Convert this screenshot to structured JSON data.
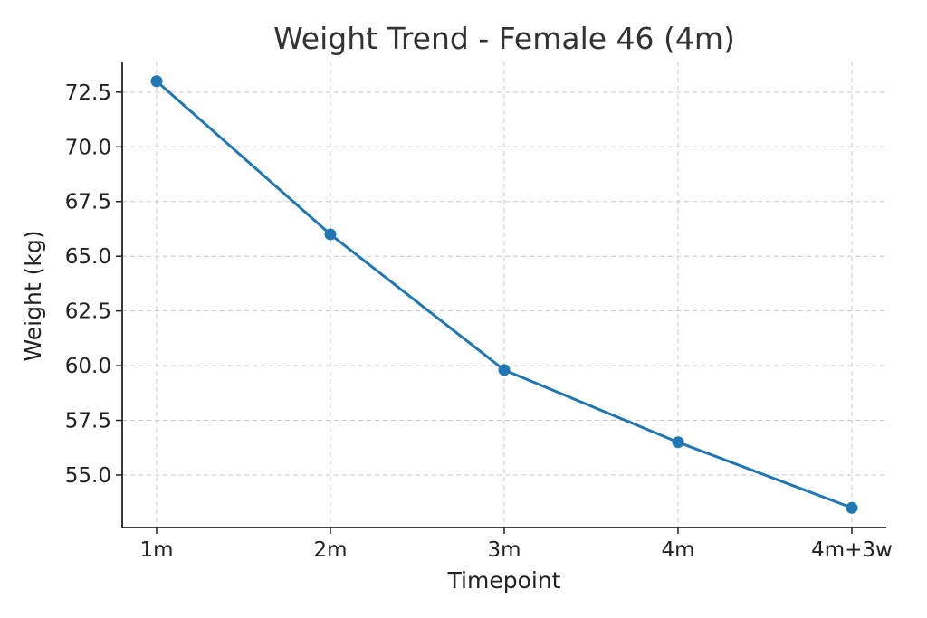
{
  "chart_data": {
    "type": "line",
    "title": "Weight Trend - Female 46 (4m)",
    "xlabel": "Timepoint",
    "ylabel": "Weight (kg)",
    "categories": [
      "1m",
      "2m",
      "3m",
      "4m",
      "4m+3w"
    ],
    "series": [
      {
        "values": [
          73.0,
          66.0,
          59.8,
          56.5,
          53.5
        ],
        "color": "#1f77b4"
      }
    ],
    "y_ticks": [
      55.0,
      57.5,
      60.0,
      62.5,
      65.0,
      67.5,
      70.0,
      72.5
    ],
    "y_tick_labels": [
      "55.0",
      "57.5",
      "60.0",
      "62.5",
      "65.0",
      "67.5",
      "70.0",
      "72.5"
    ],
    "ylim": [
      52.6,
      73.9
    ],
    "grid": true,
    "legend": "none",
    "colors": {
      "series": "#1f77b4",
      "grid": "#c8c8c8",
      "axis": "#222222",
      "title": "#333333"
    }
  }
}
